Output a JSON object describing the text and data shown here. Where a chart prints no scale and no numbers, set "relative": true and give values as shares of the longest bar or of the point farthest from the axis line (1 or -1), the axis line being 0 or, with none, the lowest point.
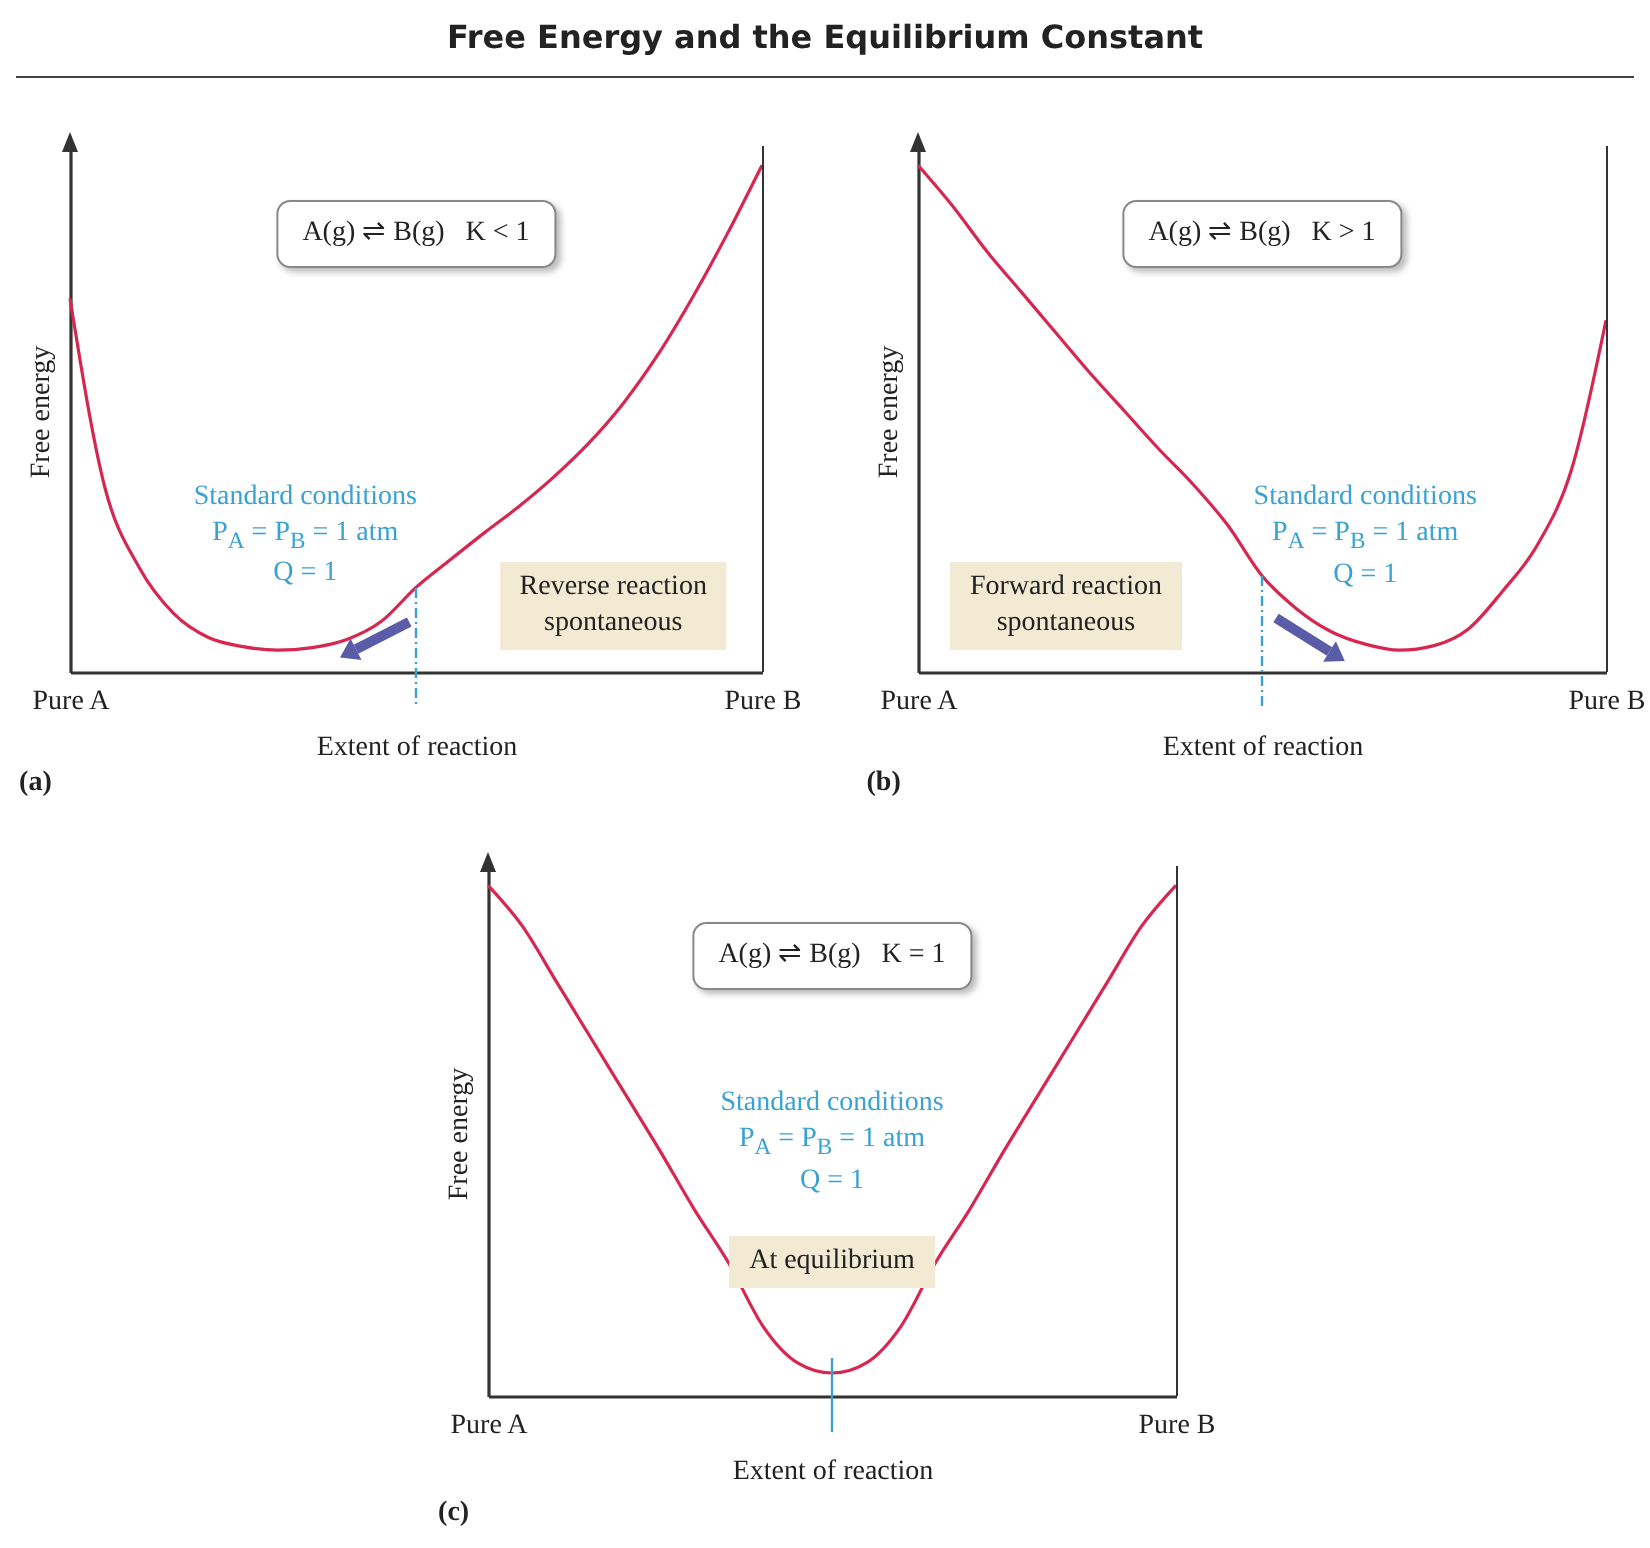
{
  "chart_data": [
    {
      "type": "line",
      "title": "Free Energy and the Equilibrium Constant",
      "xlabel": "Extent of reaction",
      "ylabel": "Free energy",
      "relative": true,
      "categories": [
        "Pure A",
        null,
        null,
        null,
        null,
        null,
        null,
        null,
        null,
        null,
        null,
        null,
        null,
        null,
        null,
        null,
        null,
        null,
        null,
        null,
        "Pure B"
      ],
      "series": [
        {
          "color": "#d7264f",
          "values": [
            0.737,
            0.366,
            0.206,
            0.115,
            0.068,
            0.05,
            0.043,
            0.048,
            0.064,
            0.1,
            0.167,
            0.222,
            0.276,
            0.328,
            0.386,
            0.452,
            0.531,
            0.627,
            0.74,
            0.865,
            1
          ]
        }
      ],
      "annotations": [
        "A(g) ⇌ B(g)   K < 1",
        "Standard conditions",
        "P$_{A}$ = P$_{B}$ = 1 atm",
        "Q = 1",
        "Reverse reaction\nspontaneous",
        "(a)"
      ]
    },
    {
      "type": "line",
      "xlabel": "Extent of reaction",
      "ylabel": "Free energy",
      "relative": true,
      "categories": [
        "Pure A",
        null,
        null,
        null,
        null,
        null,
        null,
        null,
        null,
        null,
        null,
        null,
        null,
        null,
        null,
        null,
        null,
        null,
        null,
        null,
        "Pure B"
      ],
      "series": [
        {
          "color": "#d7264f",
          "values": [
            1,
            0.92,
            0.83,
            0.75,
            0.67,
            0.59,
            0.515,
            0.44,
            0.37,
            0.29,
            0.19,
            0.125,
            0.08,
            0.055,
            0.043,
            0.052,
            0.085,
            0.16,
            0.25,
            0.4,
            0.694
          ]
        }
      ],
      "annotations": [
        "A(g) ⇌ B(g)   K > 1",
        "Standard conditions",
        "P$_{A}$ = P$_{B}$ = 1 atm",
        "Q = 1",
        "Forward reaction\nspontaneous",
        "(b)"
      ]
    },
    {
      "type": "line",
      "xlabel": "Extent of reaction",
      "ylabel": "Free energy",
      "relative": true,
      "categories": [
        "Pure A",
        null,
        null,
        null,
        null,
        null,
        null,
        null,
        null,
        null,
        null,
        null,
        null,
        null,
        null,
        null,
        null,
        null,
        null,
        null,
        "Pure B"
      ],
      "series": [
        {
          "color": "#d7264f",
          "values": [
            1,
            0.92,
            0.81,
            0.7,
            0.59,
            0.48,
            0.365,
            0.26,
            0.136,
            0.065,
            0.045,
            0.065,
            0.136,
            0.26,
            0.365,
            0.48,
            0.59,
            0.7,
            0.81,
            0.92,
            1
          ]
        }
      ],
      "annotations": [
        "A(g) ⇌ B(g)   K = 1",
        "Standard conditions",
        "P$_{A}$ = P$_{B}$ = 1 atm",
        "Q = 1",
        "At equilibrium",
        "(c)"
      ]
    }
  ]
}
